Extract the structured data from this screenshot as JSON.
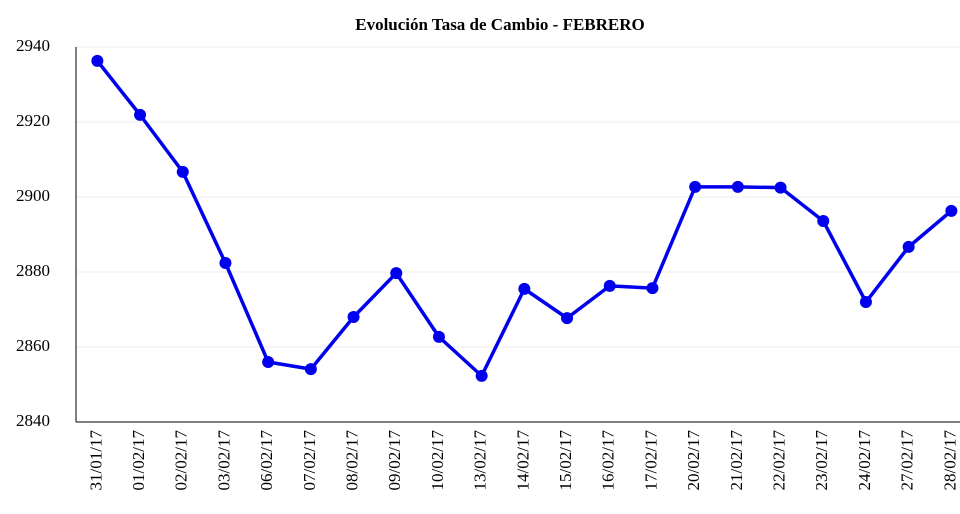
{
  "chart_data": {
    "type": "line",
    "title": "Evolución Tasa de Cambio - FEBRERO",
    "categories": [
      "31/01/17",
      "01/02/17",
      "02/02/17",
      "03/02/17",
      "06/02/17",
      "07/02/17",
      "08/02/17",
      "09/02/17",
      "10/02/17",
      "13/02/17",
      "14/02/17",
      "15/02/17",
      "16/02/17",
      "17/02/17",
      "20/02/17",
      "21/02/17",
      "22/02/17",
      "23/02/17",
      "24/02/17",
      "27/02/17",
      "28/02/17"
    ],
    "series": [
      {
        "name": "Tasa de Cambio",
        "color": "#0000ee",
        "values": [
          2936.3,
          2921.9,
          2906.7,
          2882.4,
          2856,
          2854.1,
          2868,
          2879.7,
          2862.7,
          2852.3,
          2875.5,
          2867.7,
          2876.3,
          2875.7,
          2902.7,
          2902.7,
          2902.5,
          2893.6,
          2872,
          2886.7,
          2896.3
        ]
      }
    ],
    "ylim": [
      2840,
      2940
    ],
    "yticks": [
      2840,
      2860,
      2880,
      2900,
      2920,
      2940
    ],
    "grid": true
  }
}
